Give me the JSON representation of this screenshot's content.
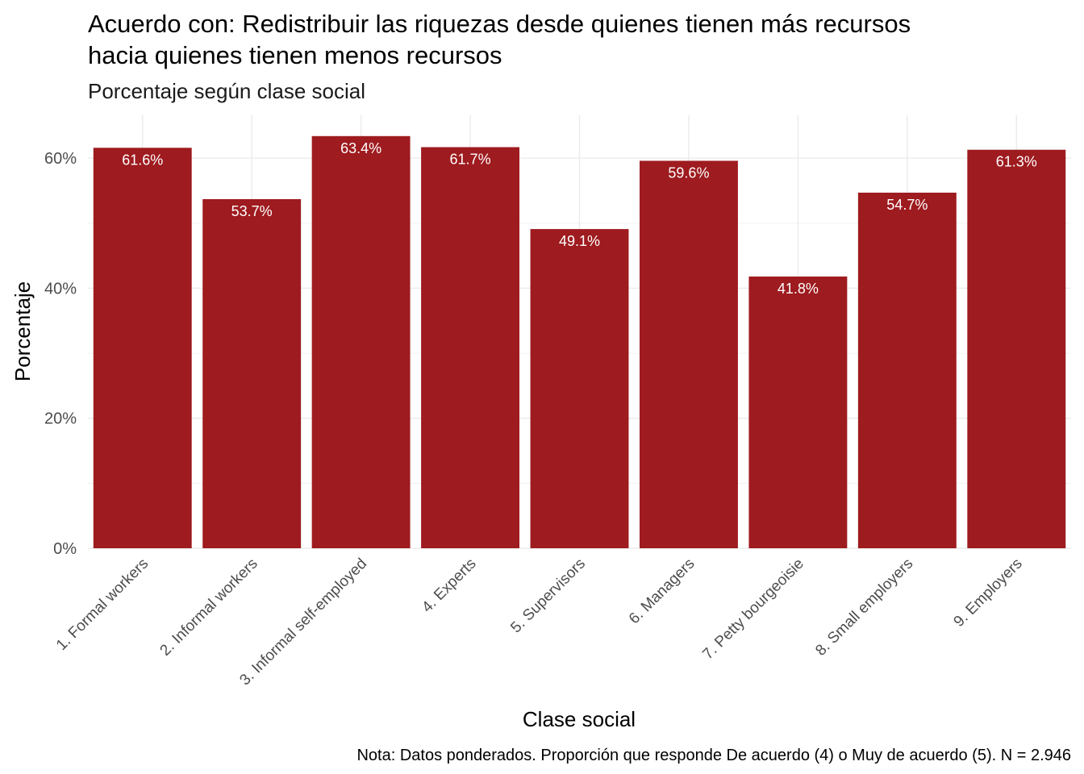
{
  "chart_data": {
    "type": "bar",
    "title": "Acuerdo con: Redistribuir las riquezas desde quienes tienen más recursos hacia quienes tienen menos recursos",
    "title_lines": [
      "Acuerdo con: Redistribuir las riquezas desde quienes tienen más recursos",
      "hacia quienes tienen menos recursos"
    ],
    "subtitle": "Porcentaje según clase social",
    "xlabel": "Clase social",
    "ylabel": "Porcentaje",
    "caption": "Nota: Datos ponderados. Proporción que responde De acuerdo (4) o Muy de acuerdo (5). N = 2.946",
    "categories": [
      "1. Formal workers",
      "2. Informal workers",
      "3. Informal self-employed",
      "4. Experts",
      "5. Supervisors",
      "6. Managers",
      "7. Petty bourgeoisie",
      "8. Small employers",
      "9. Employers"
    ],
    "values": [
      61.6,
      53.7,
      63.4,
      61.7,
      49.1,
      59.6,
      41.8,
      54.7,
      61.3
    ],
    "data_labels": [
      "61.6%",
      "53.7%",
      "63.4%",
      "61.7%",
      "49.1%",
      "59.6%",
      "41.8%",
      "54.7%",
      "61.3%"
    ],
    "yticks": [
      0,
      20,
      40,
      60
    ],
    "ytick_labels": [
      "0%",
      "20%",
      "40%",
      "60%"
    ],
    "ylim": [
      0,
      66.6
    ],
    "bar_color": "#9E1B1F",
    "grid": true,
    "legend": "none"
  }
}
